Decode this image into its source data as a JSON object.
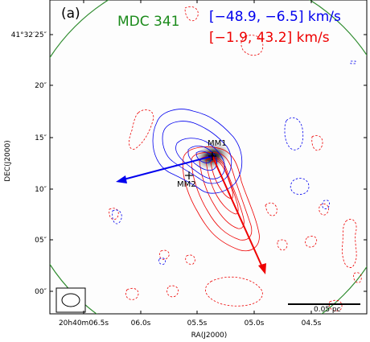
{
  "panel_label": "(a)",
  "source_name": "MDC 341",
  "blue_range": "[−48.9, −6.5] km/s",
  "red_range": "[−1.9, 43.2] km/s",
  "colors": {
    "source_name": "#1a8a1a",
    "blue": "#0000ee",
    "red": "#ee0000",
    "green_circle": "#2e8b2e"
  },
  "axes": {
    "xlabel": "RA(J2000)",
    "ylabel": "DEC(J2000)",
    "xticks": [
      "20h40m06.5s",
      "06.0s",
      "05.5s",
      "05.0s",
      "04.5s"
    ],
    "yticks": [
      "41°32′25″",
      "20″",
      "15″",
      "10″",
      "05″",
      "00″"
    ]
  },
  "sources": {
    "mm1": "MM1",
    "mm2": "MM2"
  },
  "scalebar_label": "0.05 pc"
}
